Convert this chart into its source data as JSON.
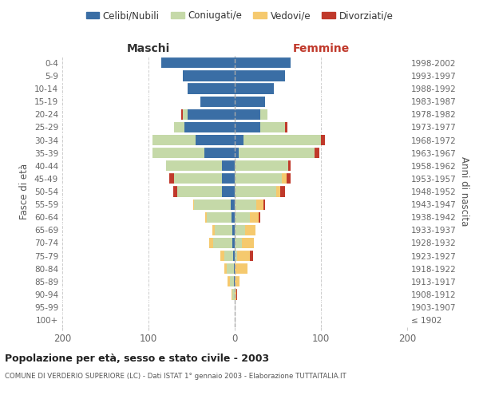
{
  "age_groups": [
    "100+",
    "95-99",
    "90-94",
    "85-89",
    "80-84",
    "75-79",
    "70-74",
    "65-69",
    "60-64",
    "55-59",
    "50-54",
    "45-49",
    "40-44",
    "35-39",
    "30-34",
    "25-29",
    "20-24",
    "15-19",
    "10-14",
    "5-9",
    "0-4"
  ],
  "birth_years": [
    "≤ 1902",
    "1903-1907",
    "1908-1912",
    "1913-1917",
    "1918-1922",
    "1923-1927",
    "1928-1932",
    "1933-1937",
    "1938-1942",
    "1943-1947",
    "1948-1952",
    "1953-1957",
    "1958-1962",
    "1963-1967",
    "1968-1972",
    "1973-1977",
    "1978-1982",
    "1983-1987",
    "1988-1992",
    "1993-1997",
    "1998-2002"
  ],
  "maschi": {
    "celibi": [
      0,
      0,
      0,
      1,
      1,
      2,
      3,
      3,
      4,
      5,
      15,
      15,
      15,
      35,
      45,
      58,
      55,
      40,
      55,
      60,
      85
    ],
    "coniugati": [
      0,
      0,
      3,
      5,
      8,
      10,
      22,
      20,
      28,
      42,
      52,
      55,
      65,
      60,
      50,
      12,
      5,
      0,
      0,
      0,
      0
    ],
    "vedovi": [
      0,
      0,
      1,
      2,
      3,
      5,
      5,
      3,
      2,
      1,
      0,
      0,
      0,
      0,
      0,
      0,
      0,
      0,
      0,
      0,
      0
    ],
    "divorziati": [
      0,
      0,
      0,
      0,
      0,
      0,
      0,
      0,
      0,
      0,
      4,
      6,
      0,
      0,
      0,
      0,
      2,
      0,
      0,
      0,
      0
    ]
  },
  "femmine": {
    "nubili": [
      0,
      0,
      0,
      0,
      0,
      0,
      0,
      0,
      0,
      0,
      0,
      0,
      0,
      5,
      10,
      30,
      30,
      35,
      45,
      58,
      65
    ],
    "coniugate": [
      0,
      0,
      0,
      0,
      0,
      3,
      8,
      12,
      18,
      25,
      48,
      55,
      62,
      88,
      90,
      28,
      8,
      0,
      0,
      0,
      0
    ],
    "vedove": [
      0,
      0,
      2,
      6,
      15,
      15,
      14,
      12,
      10,
      8,
      5,
      5,
      0,
      0,
      0,
      0,
      0,
      0,
      0,
      0,
      0
    ],
    "divorziate": [
      0,
      0,
      1,
      0,
      0,
      3,
      0,
      0,
      2,
      2,
      5,
      5,
      3,
      5,
      5,
      3,
      0,
      0,
      0,
      0,
      0
    ]
  },
  "colors": {
    "celibi": "#3a6ea5",
    "coniugati": "#c5d9a8",
    "vedovi": "#f5c96e",
    "divorziati": "#c0392b"
  },
  "xlim": 200,
  "title": "Popolazione per età, sesso e stato civile - 2003",
  "subtitle": "COMUNE DI VERDERIO SUPERIORE (LC) - Dati ISTAT 1° gennaio 2003 - Elaborazione TUTTAITALIA.IT",
  "header_left": "Maschi",
  "header_right": "Femmine",
  "ylabel_left": "Fasce di età",
  "ylabel_right": "Anni di nascita"
}
